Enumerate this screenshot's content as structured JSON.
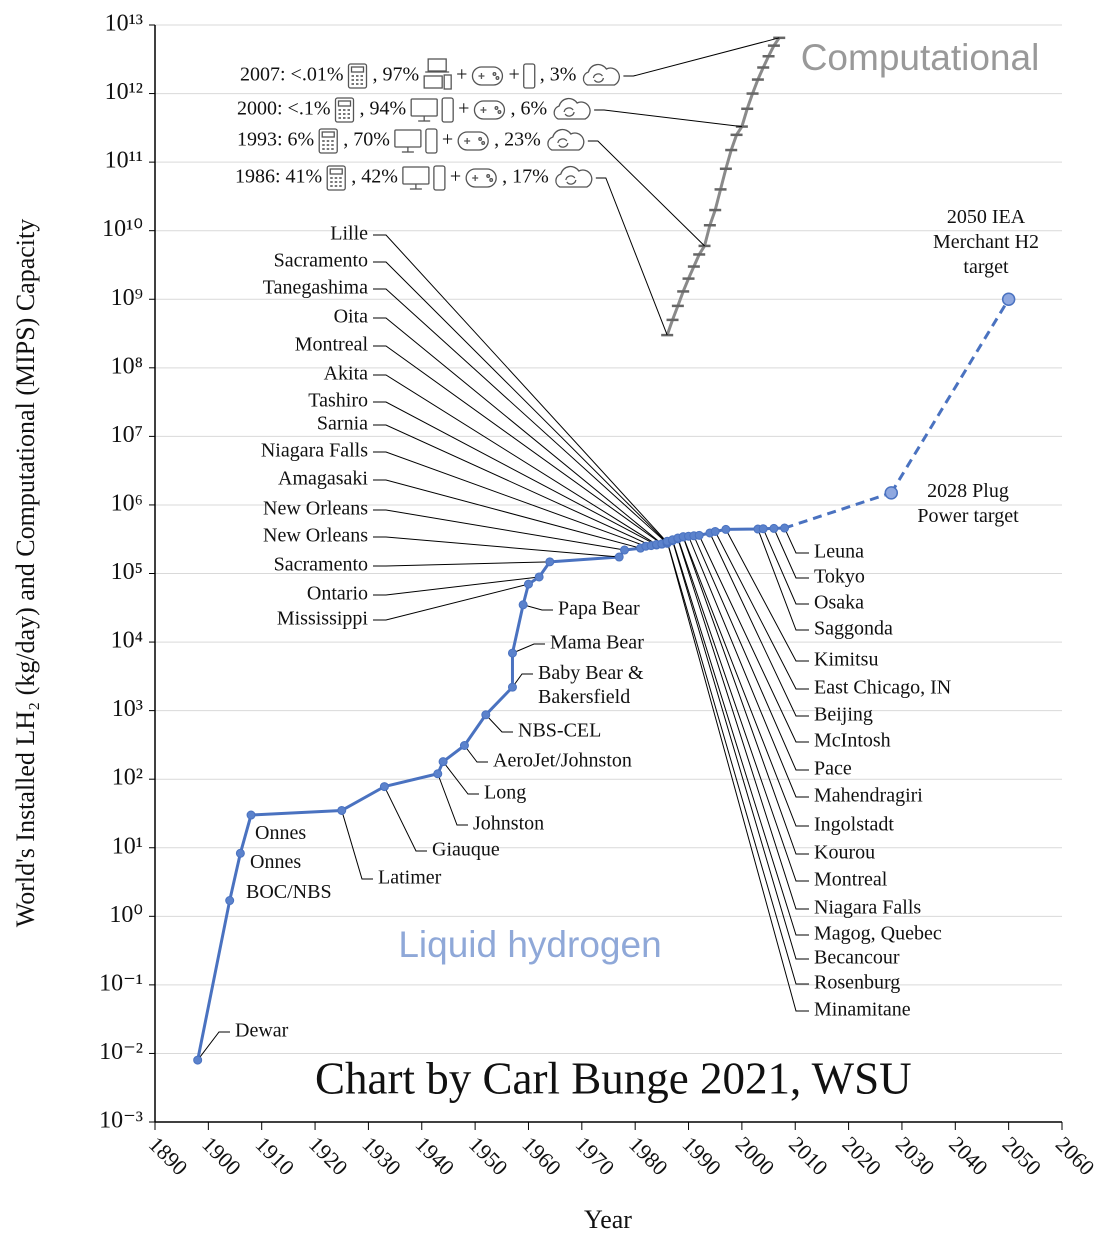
{
  "chart_data": {
    "type": "line",
    "x_label": "Year",
    "y_label": "World's Installed LH₂ (kg/day) and Computational (MIPS) Capacity",
    "credit": "Chart by Carl Bunge 2021, WSU",
    "xlim": [
      1890,
      2060
    ],
    "xticks": [
      1890,
      1900,
      1910,
      1920,
      1930,
      1940,
      1950,
      1960,
      1970,
      1980,
      1990,
      2000,
      2010,
      2020,
      2030,
      2040,
      2050,
      2060
    ],
    "ylim": [
      0.001,
      10000000000000.0
    ],
    "yscale": "log",
    "grid": true,
    "yticks": [
      {
        "value": 10000000000000.0,
        "label": "10¹³"
      },
      {
        "value": 1000000000000.0,
        "label": "10¹²"
      },
      {
        "value": 100000000000.0,
        "label": "10¹¹"
      },
      {
        "value": 10000000000.0,
        "label": "10¹⁰"
      },
      {
        "value": 1000000000.0,
        "label": "10⁹"
      },
      {
        "value": 100000000.0,
        "label": "10⁸"
      },
      {
        "value": 10000000.0,
        "label": "10⁷"
      },
      {
        "value": 1000000.0,
        "label": "10⁶"
      },
      {
        "value": 100000.0,
        "label": "10⁵"
      },
      {
        "value": 10000.0,
        "label": "10⁴"
      },
      {
        "value": 1000.0,
        "label": "10³"
      },
      {
        "value": 100,
        "label": "10²"
      },
      {
        "value": 10,
        "label": "10¹"
      },
      {
        "value": 1,
        "label": "10⁰"
      },
      {
        "value": 0.1,
        "label": "10⁻¹"
      },
      {
        "value": 0.01,
        "label": "10⁻²"
      },
      {
        "value": 0.001,
        "label": "10⁻³"
      }
    ],
    "series": [
      {
        "name": "Liquid hydrogen",
        "color": "#4a72c0",
        "label_color": "#8fa8d8",
        "style": "solid",
        "x": [
          1898,
          1904,
          1906,
          1908,
          1925,
          1933,
          1943,
          1944,
          1948,
          1952,
          1957,
          1957,
          1959,
          1960,
          1962,
          1964,
          1977,
          1978,
          1981,
          1982,
          1983,
          1984,
          1984,
          1985,
          1985,
          1986,
          1986,
          1986,
          1986,
          1986,
          1987,
          1987,
          1988,
          1988,
          1989,
          1989,
          1990,
          1991,
          1992,
          1994,
          1995,
          1997,
          2003,
          2004,
          2006,
          2008
        ],
        "values": [
          0.008,
          1.7,
          8.3,
          30,
          35,
          78,
          120,
          180,
          310,
          870,
          2200,
          6900,
          35000,
          70000,
          89000,
          148000,
          174000,
          220000,
          234000,
          250000,
          255000,
          260000,
          265000,
          268000,
          270000,
          275000,
          280000,
          285000,
          290000,
          295000,
          300000,
          310000,
          320000,
          330000,
          340000,
          345000,
          350000,
          355000,
          360000,
          390000,
          410000,
          440000,
          445000,
          450000,
          455000,
          460000
        ],
        "labels": [
          "Dewar",
          [
            "BOC/NBS"
          ],
          [
            "Onnes"
          ],
          [
            "Onnes"
          ],
          "Latimer",
          "Giauque",
          "Johnston",
          "Long",
          "AeroJet/Johnston",
          "NBS-CEL",
          [
            "Baby Bear &",
            "Bakersfield"
          ],
          "Mama Bear",
          "Papa Bear",
          "Mississippi",
          "Ontario",
          "Sacramento",
          "New Orleans",
          "New Orleans",
          "Amagasaki",
          "Niagara Falls",
          "Sarnia",
          "Tashiro",
          "Akita",
          "Montreal",
          "Oita",
          "Tanegashima",
          "Sacramento",
          "Lille",
          "Minamitane",
          "Rosenburg",
          "Becancour",
          "Magog, Quebec",
          "Niagara Falls",
          "Montreal",
          "Kourou",
          "Ingolstadt",
          "Mahendragiri",
          "Pace",
          "McIntosh",
          "Beijing",
          "East Chicago, IN",
          "Kimitsu",
          "Saggonda",
          "Osaka",
          "Tokyo",
          "Leuna"
        ]
      },
      {
        "color": "#4a72c0",
        "style": "dashed",
        "x": [
          2028,
          2050
        ],
        "values": [
          1500000,
          1000000000
        ],
        "labels": [
          [
            "2028 Plug",
            "Power target"
          ],
          [
            "2050 IEA",
            "Merchant H2",
            "target"
          ]
        ]
      },
      {
        "name": "Computational",
        "color": "#8a8a8a",
        "label_color": "#999999",
        "style": "ticked",
        "x": [
          1986,
          1987,
          1988,
          1989,
          1990,
          1991,
          1992,
          1993,
          1994,
          1995,
          1996,
          1997,
          1998,
          1999,
          2000,
          2001,
          2002,
          2003,
          2004,
          2005,
          2006,
          2007
        ],
        "values": [
          300000000.0,
          500000000.0,
          800000000.0,
          1300000000.0,
          2000000000.0,
          3000000000.0,
          4500000000.0,
          6000000000.0,
          12000000000.0,
          20000000000.0,
          40000000000.0,
          80000000000.0,
          150000000000.0,
          250000000000.0,
          330000000000.0,
          600000000000.0,
          1000000000000.0,
          1600000000000.0,
          2400000000000.0,
          3500000000000.0,
          5000000000000.0,
          6500000000000.0
        ]
      }
    ],
    "computational_notes": [
      {
        "text": [
          "2007: <.01%",
          ", 97%",
          "+",
          "+",
          ", 3%"
        ]
      },
      {
        "text": [
          "2000: <.1%",
          ", 94%",
          "+",
          ", 6%"
        ]
      },
      {
        "text": [
          "1993: 6%",
          ", 70%",
          "+",
          ", 23%"
        ]
      },
      {
        "text": [
          "1986: 41%",
          ", 42%",
          "+",
          ", 17%"
        ]
      }
    ]
  }
}
